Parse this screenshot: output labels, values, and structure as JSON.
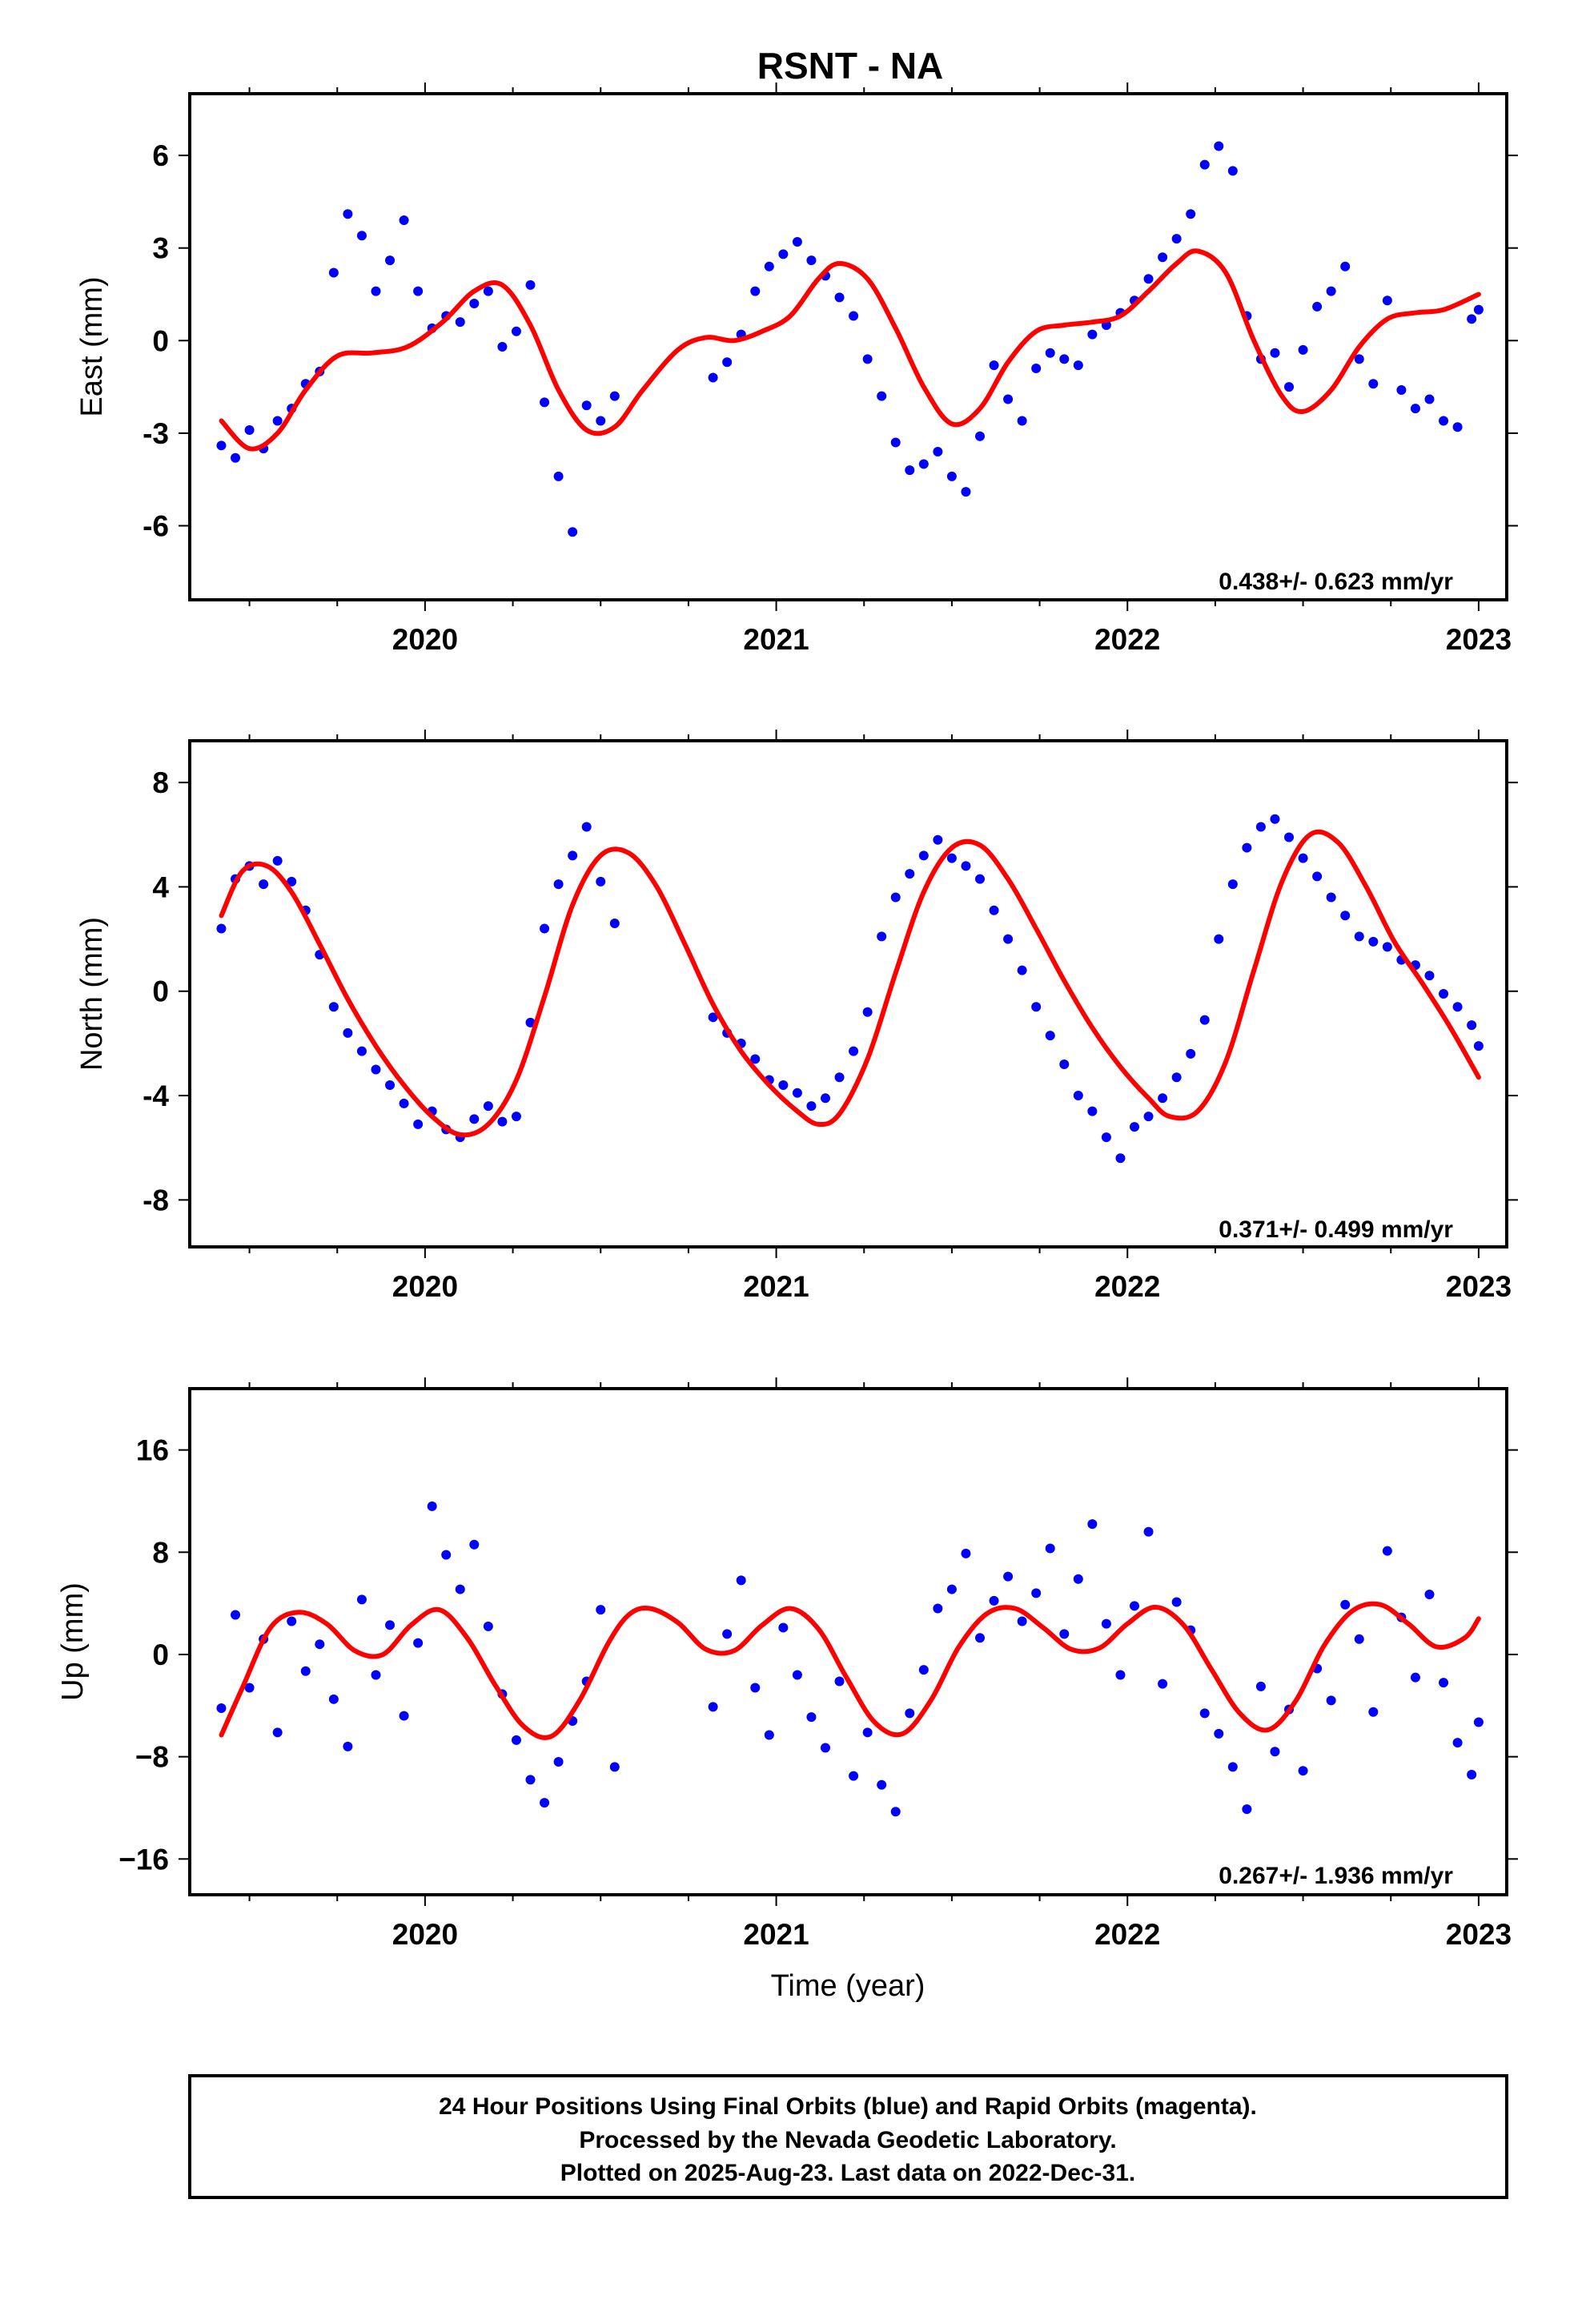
{
  "page_title": "RSNT - NA",
  "footer": {
    "line1": "24 Hour Positions Using Final Orbits (blue) and Rapid Orbits (magenta).",
    "line2": "Processed by the Nevada Geodetic Laboratory.",
    "line3": "Plotted on 2025-Aug-23. Last data on 2022-Dec-31."
  },
  "colors": {
    "data_points": "#0000ff",
    "model_curve": "#ff0000",
    "frame": "#000000"
  },
  "chart_data": [
    {
      "type": "scatter",
      "component": "east",
      "ylabel": "East (mm)",
      "xlabel": "",
      "xlim": [
        2019.33,
        2023.08
      ],
      "ylim": [
        -8.4,
        8.0
      ],
      "xticks": [
        2020,
        2021,
        2022,
        2023
      ],
      "xtick_labels": [
        "2020",
        "2021",
        "2022",
        "2023"
      ],
      "yticks": [
        -6,
        -3,
        0,
        3,
        6
      ],
      "ytick_labels": [
        "-6",
        "-3",
        "0",
        "3",
        "6"
      ],
      "rate_text": "0.438+/- 0.623 mm/yr",
      "grid": false,
      "series": [
        {
          "kind": "points",
          "x": [
            2019.42,
            2019.46,
            2019.5,
            2019.54,
            2019.58,
            2019.62,
            2019.66,
            2019.7,
            2019.74,
            2019.78,
            2019.82,
            2019.86,
            2019.9,
            2019.94,
            2019.98,
            2020.02,
            2020.06,
            2020.1,
            2020.14,
            2020.18,
            2020.22,
            2020.26,
            2020.3,
            2020.34,
            2020.38,
            2020.42,
            2020.46,
            2020.5,
            2020.54,
            2020.82,
            2020.86,
            2020.9,
            2020.94,
            2020.98,
            2021.02,
            2021.06,
            2021.1,
            2021.14,
            2021.18,
            2021.22,
            2021.26,
            2021.3,
            2021.34,
            2021.38,
            2021.42,
            2021.46,
            2021.5,
            2021.54,
            2021.58,
            2021.62,
            2021.66,
            2021.7,
            2021.74,
            2021.78,
            2021.82,
            2021.86,
            2021.9,
            2021.94,
            2021.98,
            2022.02,
            2022.06,
            2022.1,
            2022.14,
            2022.18,
            2022.22,
            2022.26,
            2022.3,
            2022.34,
            2022.38,
            2022.42,
            2022.46,
            2022.5,
            2022.54,
            2022.58,
            2022.62,
            2022.66,
            2022.7,
            2022.74,
            2022.78,
            2022.82,
            2022.86,
            2022.9,
            2022.94,
            2022.98,
            2023.0
          ],
          "y": [
            -3.4,
            -3.8,
            -2.9,
            -3.5,
            -2.6,
            -2.2,
            -1.4,
            -1.0,
            2.2,
            4.1,
            3.4,
            1.6,
            2.6,
            3.9,
            1.6,
            0.4,
            0.8,
            0.6,
            1.2,
            1.6,
            -0.2,
            0.3,
            1.8,
            -2.0,
            -4.4,
            -6.2,
            -2.1,
            -2.6,
            -1.8,
            -1.2,
            -0.7,
            0.2,
            1.6,
            2.4,
            2.8,
            3.2,
            2.6,
            2.1,
            1.4,
            0.8,
            -0.6,
            -1.8,
            -3.3,
            -4.2,
            -4.0,
            -3.6,
            -4.4,
            -4.9,
            -3.1,
            -0.8,
            -1.9,
            -2.6,
            -0.9,
            -0.4,
            -0.6,
            -0.8,
            0.2,
            0.5,
            0.9,
            1.3,
            2.0,
            2.7,
            3.3,
            4.1,
            5.7,
            6.3,
            5.5,
            0.8,
            -0.6,
            -0.4,
            -1.5,
            -0.3,
            1.1,
            1.6,
            2.4,
            -0.6,
            -1.4,
            1.3,
            -1.6,
            -2.2,
            -1.9,
            -2.6,
            -2.8,
            0.7,
            1.0
          ]
        },
        {
          "kind": "model",
          "x": [
            2019.42,
            2019.5,
            2019.58,
            2019.66,
            2019.75,
            2019.85,
            2019.95,
            2020.05,
            2020.14,
            2020.22,
            2020.3,
            2020.38,
            2020.46,
            2020.54,
            2020.62,
            2020.72,
            2020.8,
            2020.88,
            2020.96,
            2021.04,
            2021.12,
            2021.18,
            2021.26,
            2021.34,
            2021.42,
            2021.5,
            2021.58,
            2021.66,
            2021.74,
            2021.82,
            2021.9,
            2021.98,
            2022.06,
            2022.14,
            2022.2,
            2022.28,
            2022.36,
            2022.44,
            2022.5,
            2022.58,
            2022.66,
            2022.74,
            2022.82,
            2022.9,
            2023.0
          ],
          "y": [
            -2.6,
            -3.5,
            -3.0,
            -1.6,
            -0.5,
            -0.4,
            -0.2,
            0.6,
            1.6,
            1.8,
            0.5,
            -1.6,
            -2.9,
            -2.8,
            -1.6,
            -0.3,
            0.1,
            0.0,
            0.3,
            0.8,
            2.0,
            2.5,
            2.0,
            0.4,
            -1.5,
            -2.7,
            -2.2,
            -0.7,
            0.3,
            0.5,
            0.6,
            0.8,
            1.6,
            2.5,
            2.9,
            2.2,
            0.0,
            -1.8,
            -2.3,
            -1.6,
            -0.2,
            0.7,
            0.9,
            1.0,
            1.5
          ]
        }
      ]
    },
    {
      "type": "scatter",
      "component": "north",
      "ylabel": "North (mm)",
      "xlabel": "",
      "xlim": [
        2019.33,
        2023.08
      ],
      "ylim": [
        -9.8,
        9.6
      ],
      "xticks": [
        2020,
        2021,
        2022,
        2023
      ],
      "xtick_labels": [
        "2020",
        "2021",
        "2022",
        "2023"
      ],
      "yticks": [
        -8,
        -4,
        0,
        4,
        8
      ],
      "ytick_labels": [
        "-8",
        "-4",
        "0",
        "4",
        "8"
      ],
      "rate_text": "0.371+/- 0.499 mm/yr",
      "grid": false,
      "series": [
        {
          "kind": "points",
          "x": [
            2019.42,
            2019.46,
            2019.5,
            2019.54,
            2019.58,
            2019.62,
            2019.66,
            2019.7,
            2019.74,
            2019.78,
            2019.82,
            2019.86,
            2019.9,
            2019.94,
            2019.98,
            2020.02,
            2020.06,
            2020.1,
            2020.14,
            2020.18,
            2020.22,
            2020.26,
            2020.3,
            2020.34,
            2020.38,
            2020.42,
            2020.46,
            2020.5,
            2020.54,
            2020.82,
            2020.86,
            2020.9,
            2020.94,
            2020.98,
            2021.02,
            2021.06,
            2021.1,
            2021.14,
            2021.18,
            2021.22,
            2021.26,
            2021.3,
            2021.34,
            2021.38,
            2021.42,
            2021.46,
            2021.5,
            2021.54,
            2021.58,
            2021.62,
            2021.66,
            2021.7,
            2021.74,
            2021.78,
            2021.82,
            2021.86,
            2021.9,
            2021.94,
            2021.98,
            2022.02,
            2022.06,
            2022.1,
            2022.14,
            2022.18,
            2022.22,
            2022.26,
            2022.3,
            2022.34,
            2022.38,
            2022.42,
            2022.46,
            2022.5,
            2022.54,
            2022.58,
            2022.62,
            2022.66,
            2022.7,
            2022.74,
            2022.78,
            2022.82,
            2022.86,
            2022.9,
            2022.94,
            2022.98,
            2023.0
          ],
          "y": [
            2.4,
            4.3,
            4.8,
            4.1,
            5.0,
            4.2,
            3.1,
            1.4,
            -0.6,
            -1.6,
            -2.3,
            -3.0,
            -3.6,
            -4.3,
            -5.1,
            -4.6,
            -5.3,
            -5.6,
            -4.9,
            -4.4,
            -5.0,
            -4.8,
            -1.2,
            2.4,
            4.1,
            5.2,
            6.3,
            4.2,
            2.6,
            -1.0,
            -1.6,
            -2.0,
            -2.6,
            -3.4,
            -3.6,
            -3.9,
            -4.4,
            -4.1,
            -3.3,
            -2.3,
            -0.8,
            2.1,
            3.6,
            4.5,
            5.2,
            5.8,
            5.1,
            4.8,
            4.3,
            3.1,
            2.0,
            0.8,
            -0.6,
            -1.7,
            -2.8,
            -4.0,
            -4.6,
            -5.6,
            -6.4,
            -5.2,
            -4.8,
            -4.1,
            -3.3,
            -2.4,
            -1.1,
            2.0,
            4.1,
            5.5,
            6.3,
            6.6,
            5.9,
            5.1,
            4.4,
            3.6,
            2.9,
            2.1,
            1.9,
            1.7,
            1.2,
            1.0,
            0.6,
            -0.1,
            -0.6,
            -1.3,
            -2.1
          ]
        },
        {
          "kind": "model",
          "x": [
            2019.42,
            2019.48,
            2019.55,
            2019.62,
            2019.7,
            2019.78,
            2019.86,
            2019.94,
            2020.02,
            2020.1,
            2020.18,
            2020.26,
            2020.34,
            2020.42,
            2020.5,
            2020.58,
            2020.66,
            2020.74,
            2020.82,
            2020.9,
            2020.98,
            2021.06,
            2021.12,
            2021.18,
            2021.26,
            2021.34,
            2021.42,
            2021.5,
            2021.58,
            2021.66,
            2021.74,
            2021.82,
            2021.9,
            2021.98,
            2022.06,
            2022.12,
            2022.2,
            2022.28,
            2022.36,
            2022.44,
            2022.52,
            2022.6,
            2022.68,
            2022.76,
            2022.84,
            2022.92,
            2023.0
          ],
          "y": [
            2.9,
            4.6,
            4.8,
            3.8,
            1.8,
            -0.3,
            -2.1,
            -3.6,
            -4.8,
            -5.5,
            -5.1,
            -3.4,
            -0.2,
            3.3,
            5.2,
            5.3,
            4.0,
            1.8,
            -0.5,
            -2.3,
            -3.6,
            -4.6,
            -5.1,
            -4.7,
            -2.6,
            0.7,
            3.8,
            5.5,
            5.6,
            4.3,
            2.4,
            0.4,
            -1.4,
            -2.9,
            -4.1,
            -4.8,
            -4.6,
            -2.7,
            0.8,
            4.2,
            6.0,
            5.7,
            4.0,
            1.9,
            0.3,
            -1.4,
            -3.3
          ]
        }
      ]
    },
    {
      "type": "scatter",
      "component": "up",
      "ylabel": "Up (mm)",
      "xlabel": "Time (year)",
      "xlim": [
        2019.33,
        2023.08
      ],
      "ylim": [
        -18.8,
        20.8
      ],
      "xticks": [
        2020,
        2021,
        2022,
        2023
      ],
      "xtick_labels": [
        "2020",
        "2021",
        "2022",
        "2023"
      ],
      "yticks": [
        -16,
        -8,
        0,
        8,
        16
      ],
      "ytick_labels": [
        "−16",
        "−8",
        "0",
        "8",
        "16"
      ],
      "rate_text": "0.267+/- 1.936 mm/yr",
      "grid": false,
      "series": [
        {
          "kind": "points",
          "x": [
            2019.42,
            2019.46,
            2019.5,
            2019.54,
            2019.58,
            2019.62,
            2019.66,
            2019.7,
            2019.74,
            2019.78,
            2019.82,
            2019.86,
            2019.9,
            2019.94,
            2019.98,
            2020.02,
            2020.06,
            2020.1,
            2020.14,
            2020.18,
            2020.22,
            2020.26,
            2020.3,
            2020.34,
            2020.38,
            2020.42,
            2020.46,
            2020.5,
            2020.54,
            2020.82,
            2020.86,
            2020.9,
            2020.94,
            2020.98,
            2021.02,
            2021.06,
            2021.1,
            2021.14,
            2021.18,
            2021.22,
            2021.26,
            2021.3,
            2021.34,
            2021.38,
            2021.42,
            2021.46,
            2021.5,
            2021.54,
            2021.58,
            2021.62,
            2021.66,
            2021.7,
            2021.74,
            2021.78,
            2021.82,
            2021.86,
            2021.9,
            2021.94,
            2021.98,
            2022.02,
            2022.06,
            2022.1,
            2022.14,
            2022.18,
            2022.22,
            2022.26,
            2022.3,
            2022.34,
            2022.38,
            2022.42,
            2022.46,
            2022.5,
            2022.54,
            2022.58,
            2022.62,
            2022.66,
            2022.7,
            2022.74,
            2022.78,
            2022.82,
            2022.86,
            2022.9,
            2022.94,
            2022.98,
            2023.0
          ],
          "y": [
            -4.2,
            3.1,
            -2.6,
            1.2,
            -6.1,
            2.6,
            -1.3,
            0.8,
            -3.5,
            -7.2,
            4.3,
            -1.6,
            2.3,
            -4.8,
            0.9,
            11.6,
            7.8,
            5.1,
            8.6,
            2.2,
            -3.1,
            -6.7,
            -9.8,
            -11.6,
            -8.4,
            -5.2,
            -2.1,
            3.5,
            -8.8,
            -4.1,
            1.6,
            5.8,
            -2.6,
            -6.3,
            2.1,
            -1.6,
            -4.9,
            -7.3,
            -2.1,
            -9.5,
            -6.1,
            -10.2,
            -12.3,
            -4.6,
            -1.2,
            3.6,
            5.1,
            7.9,
            1.3,
            4.2,
            6.1,
            2.6,
            4.8,
            8.3,
            1.6,
            5.9,
            10.2,
            2.4,
            -1.6,
            3.8,
            9.6,
            -2.3,
            4.1,
            1.9,
            -4.6,
            -6.2,
            -8.8,
            -12.1,
            -2.5,
            -7.6,
            -4.3,
            -9.1,
            -1.1,
            -3.6,
            3.9,
            1.2,
            -4.5,
            8.1,
            2.9,
            -1.8,
            4.7,
            -2.2,
            -6.9,
            -9.4,
            -5.3
          ]
        },
        {
          "kind": "model",
          "x": [
            2019.42,
            2019.48,
            2019.56,
            2019.64,
            2019.72,
            2019.8,
            2019.88,
            2019.96,
            2020.04,
            2020.12,
            2020.2,
            2020.28,
            2020.36,
            2020.44,
            2020.52,
            2020.58,
            2020.64,
            2020.72,
            2020.8,
            2020.88,
            2020.96,
            2021.04,
            2021.12,
            2021.2,
            2021.28,
            2021.36,
            2021.44,
            2021.52,
            2021.6,
            2021.68,
            2021.76,
            2021.84,
            2021.92,
            2022.0,
            2022.08,
            2022.16,
            2022.24,
            2022.32,
            2022.4,
            2022.48,
            2022.56,
            2022.64,
            2022.72,
            2022.8,
            2022.88,
            2022.96,
            2023.0
          ],
          "y": [
            -6.3,
            -2.6,
            2.1,
            3.3,
            2.4,
            0.3,
            0.0,
            2.3,
            3.5,
            1.3,
            -2.4,
            -5.6,
            -6.4,
            -3.6,
            0.8,
            3.1,
            3.6,
            2.5,
            0.4,
            0.3,
            2.3,
            3.6,
            2.0,
            -1.8,
            -5.3,
            -6.2,
            -3.6,
            0.6,
            3.2,
            3.6,
            2.1,
            0.4,
            0.5,
            2.4,
            3.7,
            2.3,
            -1.2,
            -4.6,
            -5.9,
            -3.6,
            0.7,
            3.4,
            3.9,
            2.4,
            0.6,
            1.3,
            2.8
          ]
        }
      ]
    }
  ]
}
